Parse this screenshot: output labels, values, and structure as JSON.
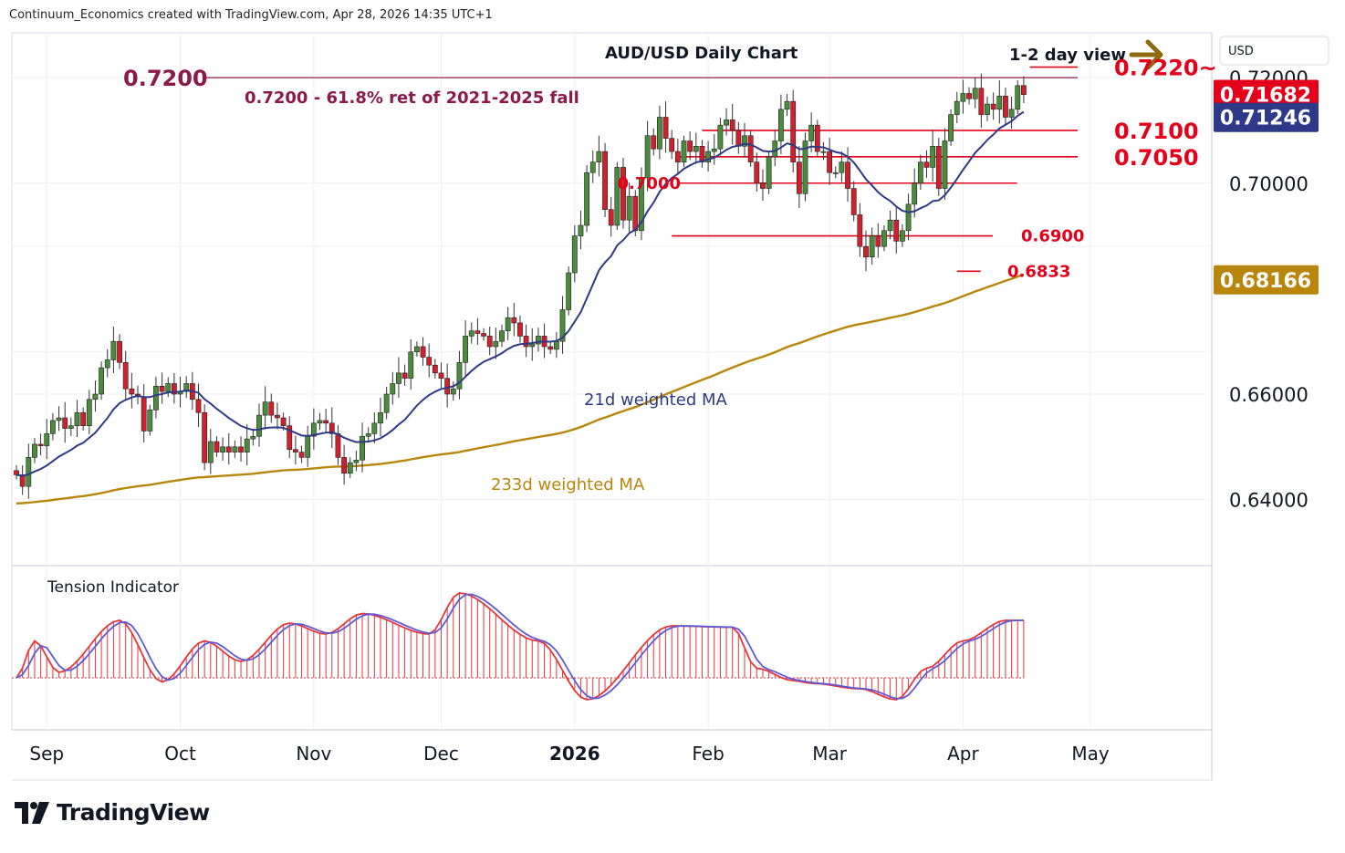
{
  "header": {
    "credit": "Continuum_Economics created with TradingView.com, Apr 28, 2026 14:35 UTC+1"
  },
  "brand": {
    "name": "TradingView",
    "icon": "tradingview-logo-icon"
  },
  "view": {
    "label": "1-2 day view",
    "icon": "arrow-right-icon"
  },
  "chart_data": [
    {
      "type": "candlestick",
      "title": "AUD/USD Daily Chart",
      "currency": "USD",
      "ylim": [
        0.628,
        0.7285
      ],
      "y_ticks": [
        {
          "value": 0.72,
          "label": "0.72000"
        },
        {
          "value": 0.7,
          "label": "0.70000"
        },
        {
          "value": 0.66,
          "label": "0.66000"
        },
        {
          "value": 0.64,
          "label": "0.64000"
        }
      ],
      "x_ticks": [
        {
          "label": "Sep",
          "bar": 5
        },
        {
          "label": "Oct",
          "bar": 27
        },
        {
          "label": "Nov",
          "bar": 49
        },
        {
          "label": "Dec",
          "bar": 70
        },
        {
          "label": "2026",
          "bar": 92
        },
        {
          "label": "Feb",
          "bar": 114
        },
        {
          "label": "Mar",
          "bar": 134
        },
        {
          "label": "Apr",
          "bar": 156
        },
        {
          "label": "May",
          "bar": 177
        }
      ],
      "price_badges": [
        {
          "value": 0.71682,
          "label": "0.71682",
          "color": "#e2001a"
        },
        {
          "value": 0.71246,
          "label": "0.71246",
          "color": "#2e3a87"
        },
        {
          "value": 0.68166,
          "label": "0.68166",
          "color": "#b8860b"
        }
      ],
      "levels": [
        {
          "value": 0.72,
          "label": "0.7200",
          "note": "0.7200 - 61.8% ret of 2021-2025 fall",
          "color": "#8b1a4a",
          "from_bar": -1,
          "to_bar": 174
        },
        {
          "value": 0.722,
          "label": "0.7220~",
          "color": "#e2001a",
          "from_bar": 167,
          "to_bar": 174
        },
        {
          "value": 0.71,
          "label": "0.7100",
          "color": "#e2001a",
          "from_bar": 113,
          "to_bar": 174
        },
        {
          "value": 0.705,
          "label": "0.7050",
          "color": "#e2001a",
          "from_bar": 109,
          "to_bar": 174
        },
        {
          "value": 0.7,
          "label": "0.7000",
          "color": "#e2001a",
          "from_bar": 109,
          "to_bar": 164
        },
        {
          "value": 0.69,
          "label": "0.6900",
          "color": "#e2001a",
          "from_bar": 108,
          "to_bar": 160
        },
        {
          "value": 0.6833,
          "label": "0.6833",
          "color": "#e2001a",
          "from_bar": 155,
          "to_bar": 158
        }
      ],
      "ma_labels": [
        {
          "name": "21d weighted MA",
          "color": "#2e3a87"
        },
        {
          "name": "233d weighted MA",
          "color": "#b8860b"
        }
      ],
      "anchors": {
        "close": [
          0.6447,
          0.6425,
          0.648,
          0.6505,
          0.6502,
          0.6525,
          0.655,
          0.6555,
          0.6535,
          0.654,
          0.6565,
          0.654,
          0.659,
          0.66,
          0.665,
          0.6665,
          0.67,
          0.666,
          0.661,
          0.66,
          0.6595,
          0.653,
          0.657,
          0.6615,
          0.6605,
          0.662,
          0.66,
          0.6605,
          0.662,
          0.659,
          0.6565,
          0.647,
          0.651,
          0.649,
          0.65,
          0.649,
          0.65,
          0.649,
          0.6515,
          0.652,
          0.656,
          0.6585,
          0.656,
          0.6555,
          0.654,
          0.6495,
          0.649,
          0.648,
          0.652,
          0.6545,
          0.655,
          0.6545,
          0.6525,
          0.648,
          0.645,
          0.647,
          0.6475,
          0.652,
          0.6525,
          0.6545,
          0.6565,
          0.66,
          0.662,
          0.664,
          0.663,
          0.668,
          0.669,
          0.667,
          0.6655,
          0.664,
          0.663,
          0.66,
          0.661,
          0.666,
          0.671,
          0.672,
          0.6715,
          0.671,
          0.669,
          0.67,
          0.672,
          0.6745,
          0.6735,
          0.671,
          0.669,
          0.6695,
          0.671,
          0.669,
          0.6685,
          0.67,
          0.676,
          0.683,
          0.69,
          0.692,
          0.702,
          0.704,
          0.706,
          0.695,
          0.692,
          0.703,
          0.693,
          0.6975,
          0.691,
          0.701,
          0.709,
          0.7065,
          0.7125,
          0.7085,
          0.706,
          0.704,
          0.708,
          0.706,
          0.707,
          0.704,
          0.706,
          0.7065,
          0.711,
          0.712,
          0.71,
          0.707,
          0.709,
          0.704,
          0.7,
          0.699,
          0.705,
          0.708,
          0.714,
          0.7155,
          0.704,
          0.698,
          0.708,
          0.711,
          0.706,
          0.706,
          0.702,
          0.702,
          0.704,
          0.699,
          0.694,
          0.688,
          0.686,
          0.69,
          0.688,
          0.691,
          0.693,
          0.689,
          0.691,
          0.696,
          0.7,
          0.704,
          0.703,
          0.707,
          0.699,
          0.708,
          0.713,
          0.7155,
          0.717,
          0.716,
          0.718,
          0.713,
          0.715,
          0.714,
          0.7165,
          0.7125,
          0.714,
          0.7185,
          0.7168
        ],
        "tension_bars": [
          [
            0,
            0
          ],
          [
            5,
            0.2
          ],
          [
            22,
            0.5
          ],
          [
            30,
            0.5
          ],
          [
            50,
            -0.1
          ],
          [
            72,
            0
          ],
          [
            95,
            0.55
          ],
          [
            150,
            0.2
          ],
          [
            180,
            0.2
          ]
        ],
        "tension_values": [
          [
            0,
            0.28
          ],
          [
            3,
            0.55
          ],
          [
            7,
            0.32
          ],
          [
            17,
            0.7
          ],
          [
            24,
            0.25
          ],
          [
            31,
            0.55
          ],
          [
            37,
            0.4
          ],
          [
            45,
            0.68
          ],
          [
            51,
            0.6
          ],
          [
            57,
            0.75
          ],
          [
            68,
            0.6
          ],
          [
            73,
            0.9
          ],
          [
            86,
            0.55
          ],
          [
            94,
            0.12
          ],
          [
            108,
            0.66
          ],
          [
            118,
            0.65
          ],
          [
            122,
            0.35
          ],
          [
            128,
            0.26
          ],
          [
            131,
            0.24
          ],
          [
            139,
            0.2
          ],
          [
            145,
            0.12
          ],
          [
            150,
            0.35
          ],
          [
            156,
            0.55
          ],
          [
            163,
            0.7
          ]
        ]
      },
      "bars_from": "close",
      "ma21_from": "close",
      "ma233_from": "close"
    },
    {
      "type": "histogram",
      "title": "Tension Indicator",
      "series": [
        {
          "name": "",
          "color": "#e8363c",
          "values_ref": "tension_values"
        },
        {
          "name": "",
          "color": "#5b5bd6"
        }
      ]
    }
  ]
}
